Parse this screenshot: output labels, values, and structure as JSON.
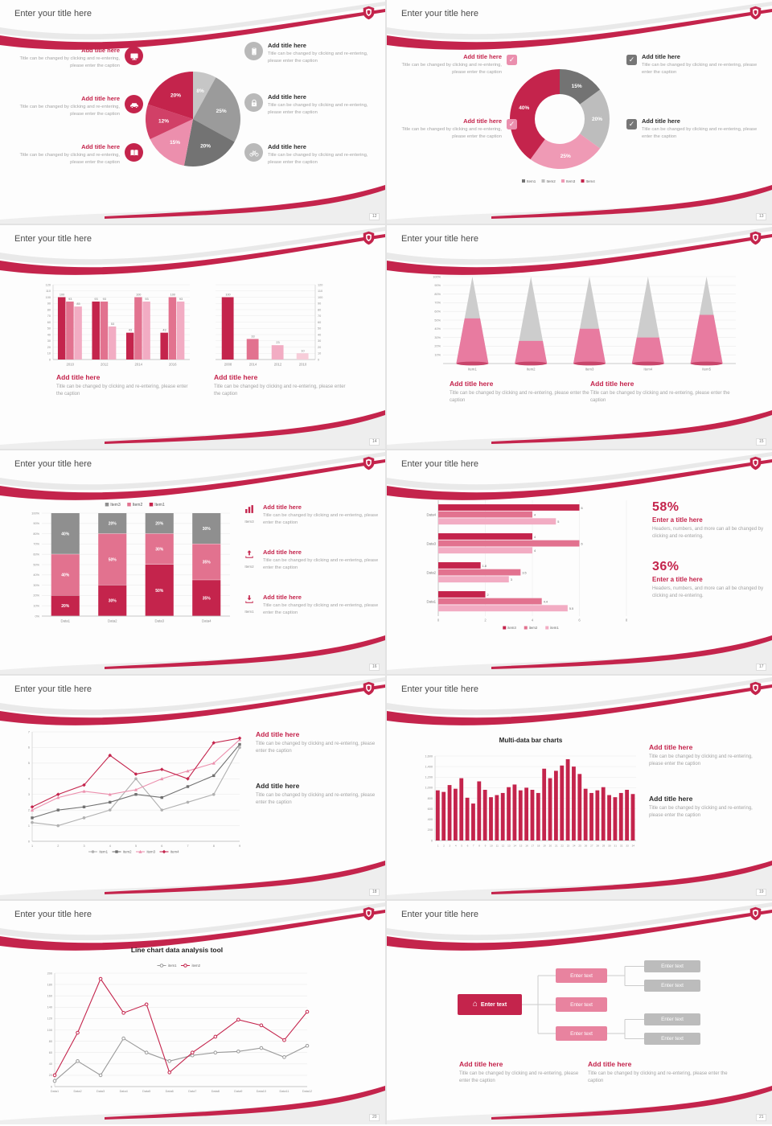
{
  "accent_color": "#c4244c",
  "common": {
    "slide_title": "Enter your title here",
    "add_title": "Add title here",
    "caption": "Title can be changed by clicking and re-entering, please enter the caption"
  },
  "icons": {
    "check_glyph": "✓",
    "home_glyph": "⌂",
    "slide1_left": [
      "monitor-icon",
      "car-icon",
      "book-icon"
    ],
    "slide1_right": [
      "phone-icon",
      "lock-icon",
      "bicycle-icon"
    ],
    "slide5": [
      "bar-chart-icon",
      "upload-icon",
      "download-icon"
    ],
    "header": "shield-logo-icon"
  },
  "slides": [
    {
      "page": "12"
    },
    {
      "page": "13"
    },
    {
      "page": "14"
    },
    {
      "page": "15"
    },
    {
      "page": "16",
      "items": [
        {
          "tag": "Item3"
        },
        {
          "tag": "Item2"
        },
        {
          "tag": "Item1"
        }
      ]
    },
    {
      "page": "17",
      "stats": [
        {
          "value": "58%",
          "title": "Enter a title here",
          "caption": "Headers, numbers, and more can all be changed by clicking and re-entering."
        },
        {
          "value": "36%",
          "title": "Enter a title here",
          "caption": "Headers, numbers, and more can all be changed by clicking and re-entering."
        }
      ]
    },
    {
      "page": "18"
    },
    {
      "page": "19",
      "chart_title": "Multi-data bar charts"
    },
    {
      "page": "20",
      "chart_title": "Line chart data analysis tool"
    },
    {
      "page": "21",
      "enter_text": "Enter text"
    }
  ],
  "chart_data": [
    {
      "type": "pie",
      "title": "",
      "values": [
        8,
        25,
        20,
        15,
        12,
        20
      ],
      "labels": [
        "8%",
        "25%",
        "20%",
        "15%",
        "12%",
        "20%"
      ],
      "colors": [
        "#c6c6c6",
        "#9b9b9b",
        "#737373",
        "#ec8fad",
        "#d14067",
        "#c4244c"
      ]
    },
    {
      "type": "pie",
      "donut": 0.5,
      "values": [
        15,
        20,
        25,
        40
      ],
      "labels": [
        "15%",
        "20%",
        "25%",
        "40%"
      ],
      "colors": [
        "#737373",
        "#bdbdbd",
        "#ef9ab5",
        "#c4244c"
      ],
      "legend": [
        {
          "name": "Item1",
          "color": "#737373"
        },
        {
          "name": "Item2",
          "color": "#bdbdbd"
        },
        {
          "name": "Item3",
          "color": "#ef9ab5"
        },
        {
          "name": "Item4",
          "color": "#c4244c"
        }
      ]
    },
    {
      "type": "bar",
      "categories": [
        "2010",
        "2012",
        "2014",
        "2016"
      ],
      "series": [
        {
          "color": "#c4244c",
          "values": [
            100,
            93,
            43,
            43
          ]
        },
        {
          "color": "#e2728f",
          "values": [
            93,
            93,
            100,
            100
          ]
        },
        {
          "color": "#f2acc3",
          "values": [
            85,
            53,
            93,
            93
          ]
        }
      ],
      "ylim": [
        0,
        120
      ],
      "ystep": 10,
      "labels": true
    },
    {
      "type": "bar",
      "rightAxis": true,
      "categories": [
        "2008",
        "2014",
        "2012",
        "2010"
      ],
      "series": [
        {
          "colors_per_bar": [
            "#c4244c",
            "#e2728f",
            "#f2acc3",
            "#f7cdd9"
          ],
          "values": [
            100,
            33,
            23,
            10
          ]
        }
      ],
      "ylim": [
        0,
        120
      ],
      "ystep": 10,
      "labels": true,
      "groupFill": 0.5
    },
    {
      "type": "cone",
      "categories": [
        "Item1",
        "Item2",
        "Item3",
        "Item4",
        "Item5"
      ],
      "values": [
        52,
        26,
        40,
        30,
        56
      ],
      "ylim_percent": [
        10,
        100
      ]
    },
    {
      "type": "stacked_bar",
      "categories": [
        "Data1",
        "Data2",
        "Data3",
        "Data4"
      ],
      "series": [
        {
          "name": "Item1",
          "color": "#c4244c",
          "values": [
            20,
            30,
            50,
            35
          ]
        },
        {
          "name": "Item2",
          "color": "#e2728f",
          "values": [
            40,
            50,
            30,
            35
          ]
        },
        {
          "name": "Item3",
          "color": "#8f8f8f",
          "values": [
            40,
            20,
            20,
            30
          ]
        }
      ],
      "legend": [
        "Item3",
        "Item2",
        "Item1"
      ]
    },
    {
      "type": "hbar",
      "categories": [
        "Data4",
        "Data3",
        "Data2",
        "Data1"
      ],
      "series": [
        {
          "name": "item3",
          "color": "#c4244c",
          "values": [
            6,
            4,
            1.8,
            2
          ]
        },
        {
          "name": "item2",
          "color": "#e2728f",
          "values": [
            4,
            6,
            3.5,
            4.4
          ]
        },
        {
          "name": "item1",
          "color": "#f2acc3",
          "values": [
            5,
            4,
            3,
            5.5
          ]
        }
      ],
      "xmax": 8,
      "xticks": [
        0,
        2,
        4,
        6,
        8
      ]
    },
    {
      "type": "line",
      "x_labels": [
        "1",
        "2",
        "3",
        "4",
        "5",
        "6",
        "7",
        "8",
        "9"
      ],
      "ylim": [
        0,
        7
      ],
      "ystep": 1,
      "legendPos": "bottom",
      "series": [
        {
          "name": "item1",
          "color": "#b0b0b0",
          "marker": "circle",
          "values": [
            1.2,
            1.0,
            1.5,
            2.0,
            4.0,
            2.0,
            2.5,
            3.0,
            6.0
          ]
        },
        {
          "name": "item2",
          "color": "#707070",
          "marker": "square",
          "values": [
            1.5,
            2.0,
            2.2,
            2.5,
            3.0,
            2.8,
            3.5,
            4.2,
            6.2
          ]
        },
        {
          "name": "item3",
          "color": "#ec8fad",
          "marker": "triangle",
          "values": [
            2.0,
            2.8,
            3.2,
            3.0,
            3.3,
            4.0,
            4.5,
            5.0,
            6.5
          ]
        },
        {
          "name": "item4",
          "color": "#c4244c",
          "marker": "diamond",
          "values": [
            2.2,
            3.0,
            3.6,
            5.5,
            4.3,
            4.6,
            4.0,
            6.3,
            6.6
          ]
        }
      ]
    },
    {
      "type": "bar",
      "categories": [
        "1",
        "2",
        "3",
        "4",
        "5",
        "6",
        "7",
        "8",
        "9",
        "10",
        "11",
        "12",
        "13",
        "14",
        "15",
        "16",
        "17",
        "18",
        "19",
        "20",
        "21",
        "22",
        "23",
        "24",
        "25",
        "26",
        "27",
        "28",
        "29",
        "30",
        "31",
        "32",
        "33",
        "34"
      ],
      "series": [
        {
          "color": "#c4244c",
          "values": [
            950,
            920,
            1050,
            980,
            1180,
            810,
            700,
            1120,
            960,
            820,
            860,
            900,
            1010,
            1060,
            950,
            1000,
            960,
            900,
            1360,
            1180,
            1320,
            1420,
            1540,
            1400,
            1260,
            980,
            900,
            950,
            1010,
            860,
            820,
            900,
            960,
            880
          ]
        }
      ],
      "ylim": [
        0,
        1600
      ],
      "ystep": 200,
      "labels": false,
      "groupFill": 0.75,
      "tinyCats": true
    },
    {
      "type": "line",
      "x_labels": [
        "Data1",
        "Data2",
        "Data3",
        "Data4",
        "Data5",
        "Data6",
        "Data7",
        "Data8",
        "Data9",
        "Data10",
        "Data11",
        "Data12"
      ],
      "ylim": [
        0,
        200
      ],
      "ystep": 20,
      "legendPos": "top",
      "hollow": true,
      "series": [
        {
          "name": "item1",
          "color": "#9a9a9a",
          "marker": "circle",
          "values": [
            10,
            45,
            20,
            85,
            60,
            45,
            55,
            60,
            62,
            68,
            52,
            72
          ]
        },
        {
          "name": "item2",
          "color": "#c4244c",
          "marker": "circle",
          "values": [
            20,
            95,
            190,
            130,
            145,
            25,
            60,
            88,
            118,
            108,
            82,
            132
          ]
        }
      ]
    }
  ]
}
